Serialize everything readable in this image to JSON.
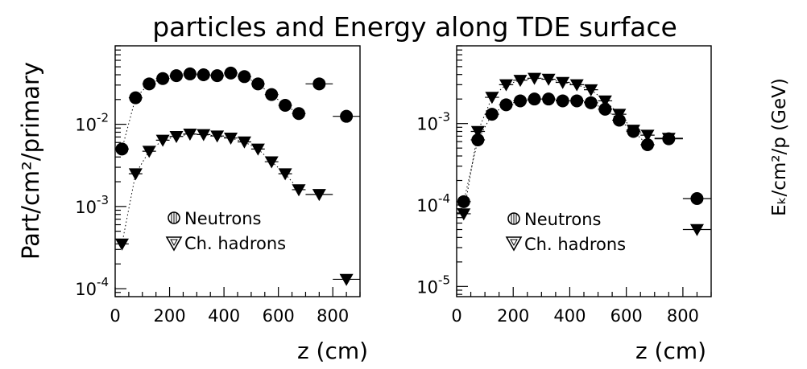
{
  "title": "particles and Energy  along TDE  surface",
  "chart_data": [
    {
      "type": "scatter",
      "ylabel": "Part/cm²/primary",
      "xlabel": "z (cm)",
      "xlim": [
        0,
        900
      ],
      "ylim": [
        8e-05,
        0.09
      ],
      "log_y": true,
      "grid": false,
      "legend_placement": "bottom-center",
      "x_ticks": [
        0,
        200,
        400,
        600,
        800
      ],
      "x_tick_labels": [
        "0",
        "200",
        "400",
        "600",
        "800"
      ],
      "y_ticks": [
        0.0001,
        0.001,
        0.01
      ],
      "y_tick_labels": [
        {
          "base": "10",
          "exp": "-4"
        },
        {
          "base": "10",
          "exp": "-3"
        },
        {
          "base": "10",
          "exp": "-2"
        }
      ],
      "series": [
        {
          "name": "Neutrons",
          "marker": "circle",
          "points": [
            [
              25,
              0.005
            ],
            [
              75,
              0.021
            ],
            [
              125,
              0.031
            ],
            [
              175,
              0.036
            ],
            [
              225,
              0.039
            ],
            [
              275,
              0.041
            ],
            [
              325,
              0.04
            ],
            [
              375,
              0.039
            ],
            [
              425,
              0.042
            ],
            [
              475,
              0.038
            ],
            [
              525,
              0.031
            ],
            [
              575,
              0.023
            ],
            [
              625,
              0.017
            ],
            [
              675,
              0.0135
            ],
            [
              750,
              0.031
            ],
            [
              850,
              0.0125
            ]
          ]
        },
        {
          "name": "Ch. hadrons",
          "marker": "triangle-down",
          "points": [
            [
              25,
              0.00035
            ],
            [
              75,
              0.0025
            ],
            [
              125,
              0.0047
            ],
            [
              175,
              0.0064
            ],
            [
              225,
              0.0071
            ],
            [
              275,
              0.0076
            ],
            [
              325,
              0.0075
            ],
            [
              375,
              0.0072
            ],
            [
              425,
              0.0068
            ],
            [
              475,
              0.0061
            ],
            [
              525,
              0.005
            ],
            [
              575,
              0.0035
            ],
            [
              625,
              0.0025
            ],
            [
              675,
              0.0016
            ],
            [
              750,
              0.0014
            ],
            [
              850,
              0.00013
            ]
          ]
        }
      ]
    },
    {
      "type": "scatter",
      "ylabel": "Eₖ/cm²/p  (GeV)",
      "xlabel": "z (cm)",
      "xlim": [
        0,
        900
      ],
      "ylim": [
        7.5e-06,
        0.009
      ],
      "log_y": true,
      "grid": false,
      "legend_placement": "bottom-center",
      "x_ticks": [
        0,
        200,
        400,
        600,
        800
      ],
      "x_tick_labels": [
        "0",
        "200",
        "400",
        "600",
        "800"
      ],
      "y_ticks": [
        1e-05,
        0.0001,
        0.001
      ],
      "y_tick_labels": [
        {
          "base": "10",
          "exp": "-5"
        },
        {
          "base": "10",
          "exp": "-4"
        },
        {
          "base": "10",
          "exp": "-3"
        }
      ],
      "series": [
        {
          "name": "Neutrons",
          "marker": "circle",
          "points": [
            [
              25,
              0.00011
            ],
            [
              75,
              0.00063
            ],
            [
              125,
              0.0013
            ],
            [
              175,
              0.0017
            ],
            [
              225,
              0.0019
            ],
            [
              275,
              0.002
            ],
            [
              325,
              0.002
            ],
            [
              375,
              0.0019
            ],
            [
              425,
              0.0019
            ],
            [
              475,
              0.0018
            ],
            [
              525,
              0.0015
            ],
            [
              575,
              0.0011
            ],
            [
              625,
              0.0008
            ],
            [
              675,
              0.00055
            ],
            [
              750,
              0.00065
            ],
            [
              850,
              0.00012
            ]
          ]
        },
        {
          "name": "Ch. hadrons",
          "marker": "triangle-down",
          "points": [
            [
              25,
              7.8e-05
            ],
            [
              75,
              0.0008
            ],
            [
              125,
              0.0021
            ],
            [
              175,
              0.003
            ],
            [
              225,
              0.0034
            ],
            [
              275,
              0.0036
            ],
            [
              325,
              0.0035
            ],
            [
              375,
              0.0032
            ],
            [
              425,
              0.003
            ],
            [
              475,
              0.0026
            ],
            [
              525,
              0.0019
            ],
            [
              575,
              0.0013
            ],
            [
              625,
              0.00083
            ],
            [
              675,
              0.00072
            ],
            [
              750,
              0.00066
            ],
            [
              850,
              5e-05
            ]
          ]
        }
      ]
    }
  ]
}
